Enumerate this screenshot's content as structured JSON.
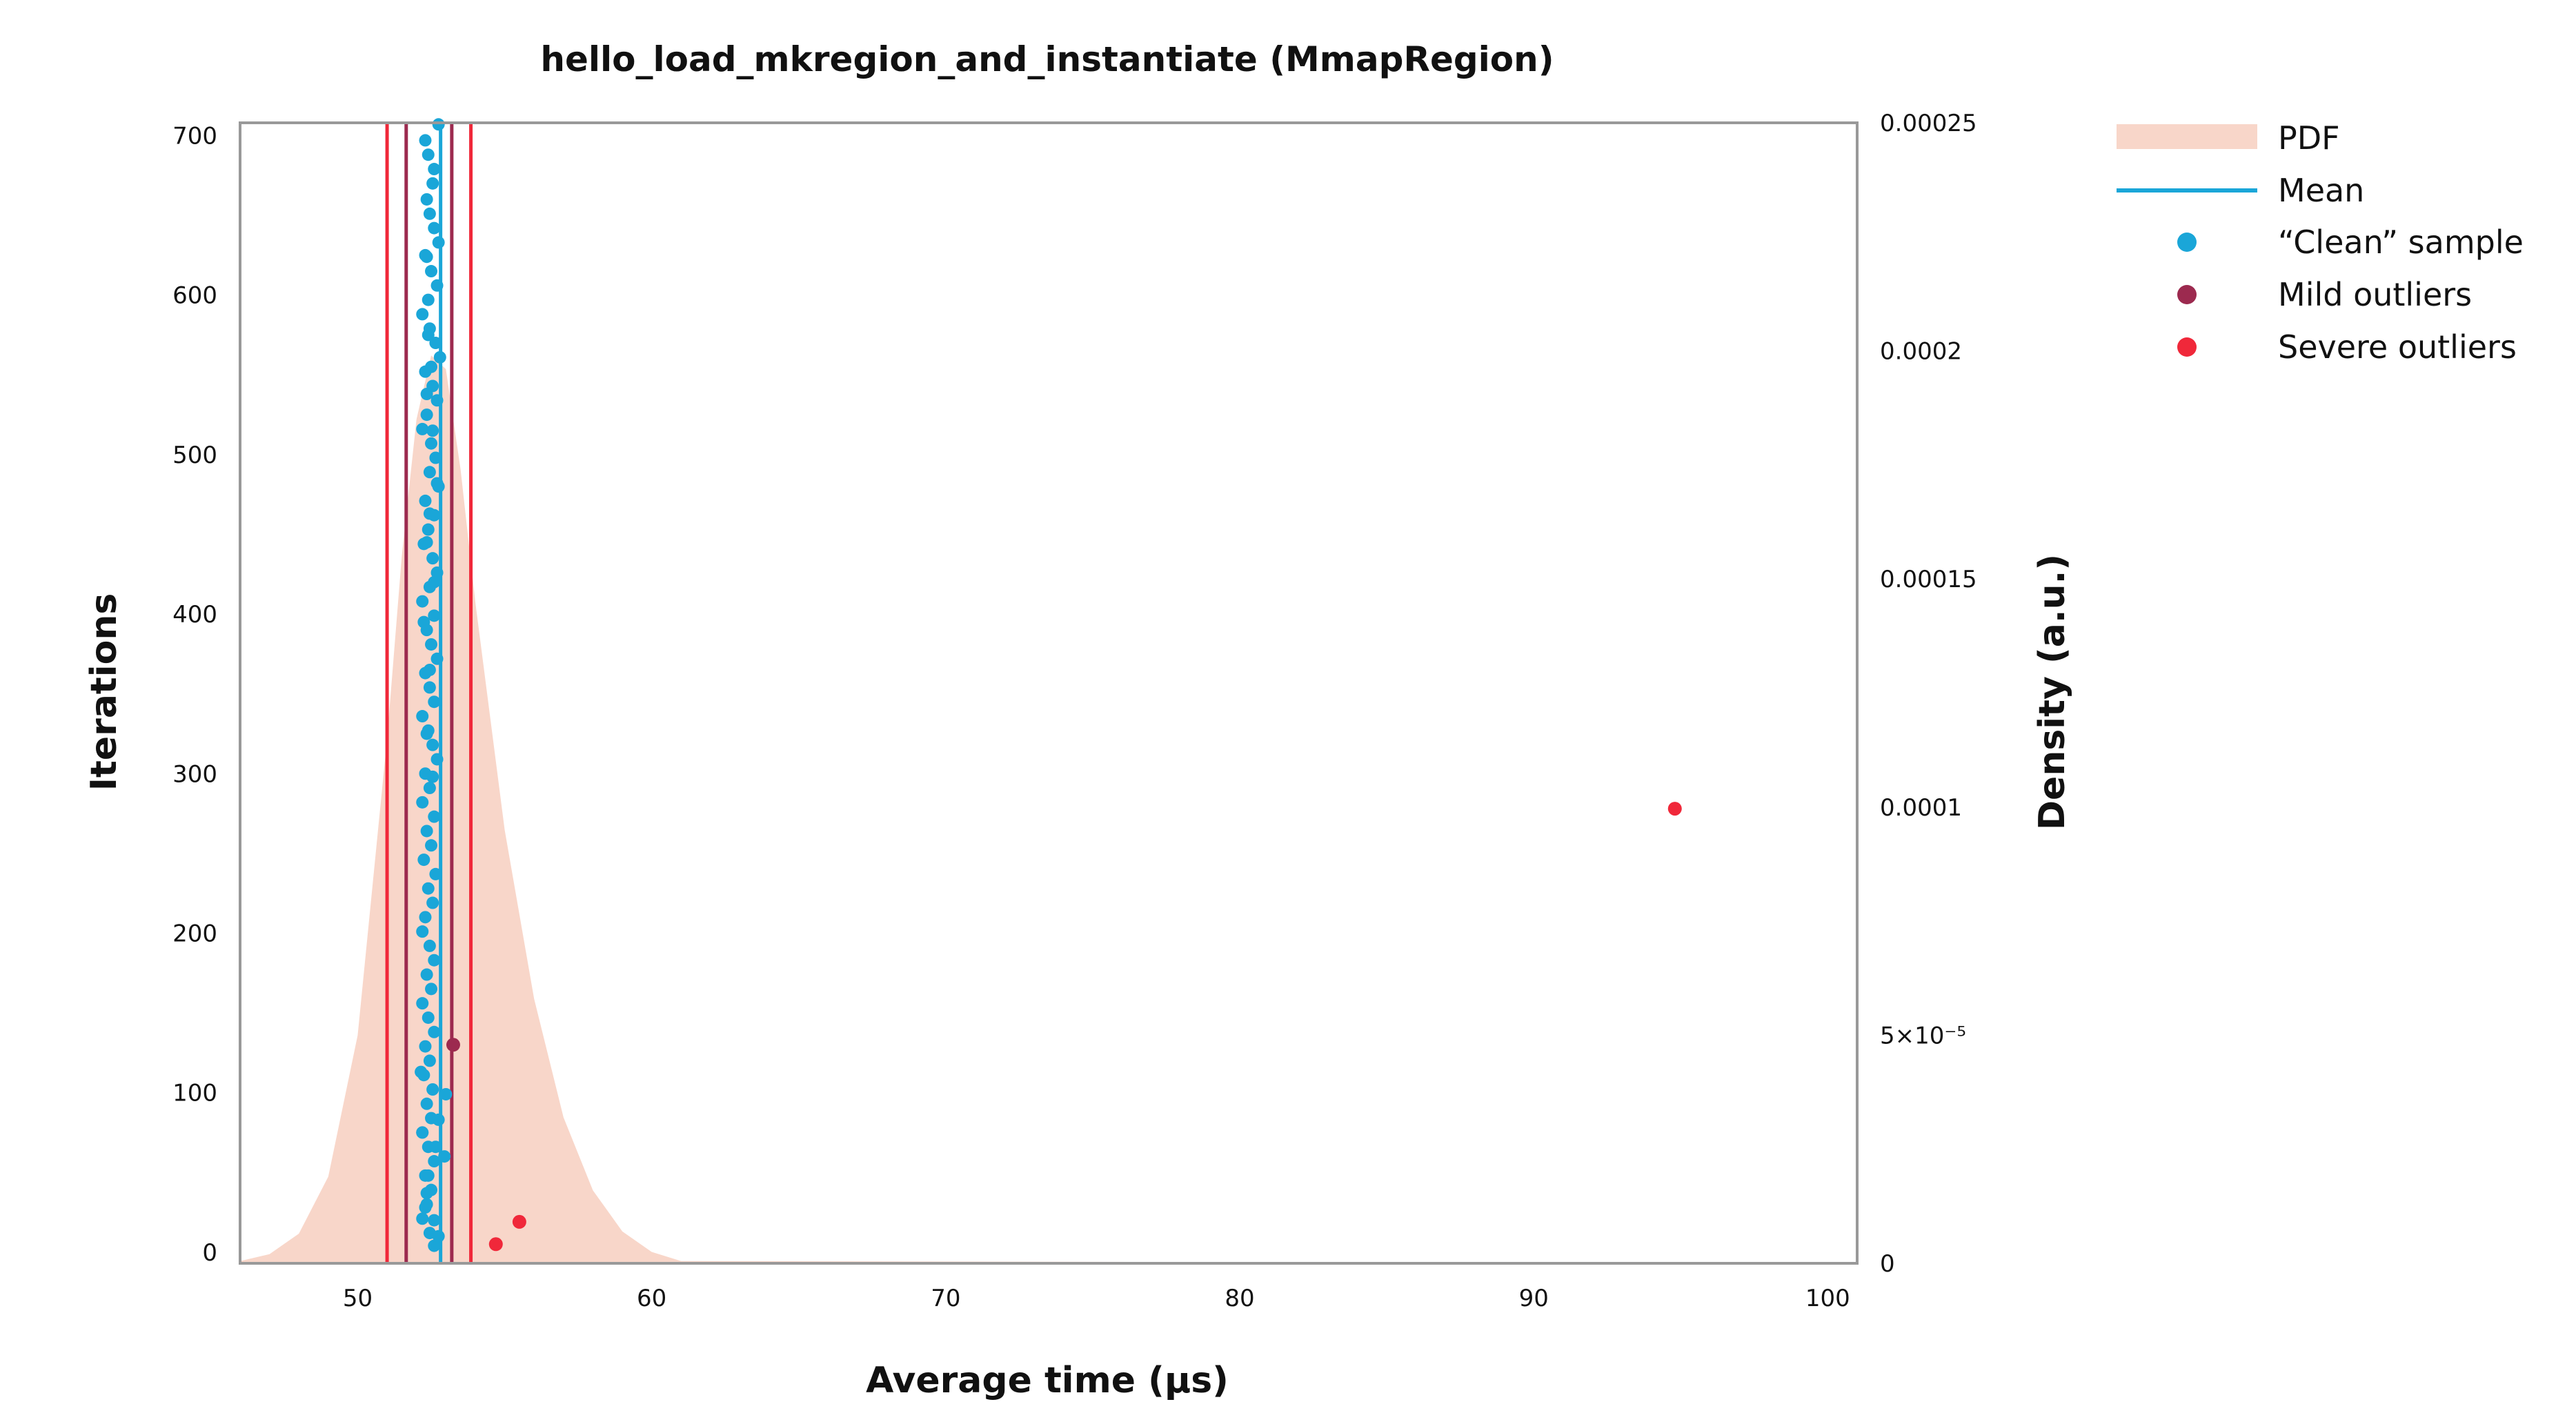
{
  "chart_data": {
    "type": "scatter",
    "title": "hello_load_mkregion_and_instantiate (MmapRegion)",
    "xlabel": "Average time (µs)",
    "ylabel": "Iterations",
    "y2label": "Density (a.u.)",
    "xlim": [
      46,
      101
    ],
    "ylim": [
      -7,
      708
    ],
    "y2lim": [
      0,
      0.00025
    ],
    "xticks": [
      "50",
      "60",
      "70",
      "80",
      "90",
      "100"
    ],
    "xtick_values": [
      50,
      60,
      70,
      80,
      90,
      100
    ],
    "yticks": [
      "0",
      "100",
      "200",
      "300",
      "400",
      "500",
      "600",
      "700"
    ],
    "ytick_values": [
      0,
      100,
      200,
      300,
      400,
      500,
      600,
      700
    ],
    "y2ticks": [
      "0",
      "5×10⁻⁵",
      "0.0001",
      "0.00015",
      "0.0002",
      "0.00025"
    ],
    "y2tick_values": [
      0,
      5e-05,
      0.0001,
      0.00015,
      0.0002,
      0.00025
    ],
    "grid": false,
    "legend_position": "outside-right-top",
    "legend": [
      {
        "label": "PDF",
        "kind": "area"
      },
      {
        "label": "Mean",
        "kind": "line"
      },
      {
        "label": "“Clean” sample",
        "kind": "dot"
      },
      {
        "label": "Mild outliers",
        "kind": "dot"
      },
      {
        "label": "Severe outliers",
        "kind": "dot"
      }
    ],
    "colors": {
      "pdf": "#f8d6c9",
      "mean": "#1aa6d8",
      "clean": "#1aa6d8",
      "mild": "#9c2a4f",
      "severe": "#f0283a"
    },
    "pdf": {
      "x": [
        46,
        47,
        48,
        49,
        50,
        51,
        51.5,
        52,
        52.5,
        53,
        53.5,
        54,
        55,
        56,
        57,
        58,
        59,
        60,
        61,
        101
      ],
      "density": [
        5e-07,
        2e-06,
        6.5e-06,
        1.9e-05,
        5e-05,
        0.000115,
        0.000155,
        0.000185,
        0.000199,
        0.000196,
        0.000174,
        0.000145,
        9.5e-05,
        5.8e-05,
        3.2e-05,
        1.6e-05,
        7e-06,
        2.5e-06,
        5e-07,
        0
      ]
    },
    "mean": 52.82,
    "mild_fences": [
      51.65,
      53.2
    ],
    "severe_fences": [
      51.0,
      53.85
    ],
    "clean_sample": {
      "x": [
        52.75,
        52.3,
        52.4,
        52.6,
        52.55,
        52.35,
        52.45,
        52.6,
        52.75,
        52.35,
        52.5,
        52.7,
        52.4,
        52.2,
        52.45,
        52.65,
        52.8,
        52.3,
        52.55,
        52.7,
        52.35,
        52.2,
        52.5,
        52.65,
        52.45,
        52.75,
        52.3,
        52.6,
        52.4,
        52.25,
        52.55,
        52.7,
        52.45,
        52.2,
        52.6,
        52.35,
        52.5,
        52.7,
        52.3,
        52.45,
        52.6,
        52.2,
        52.4,
        52.55,
        52.7,
        52.3,
        52.45,
        52.2,
        52.6,
        52.35,
        52.5,
        52.25,
        52.65,
        52.4,
        52.55,
        52.3,
        52.2,
        52.45,
        52.6,
        52.35,
        52.5,
        52.2,
        52.4,
        52.6,
        52.3,
        52.45,
        52.25,
        52.55,
        52.35,
        52.5,
        52.2,
        52.4,
        52.6,
        52.3,
        52.5,
        52.35,
        52.2,
        52.45,
        52.6,
        52.3,
        52.4,
        52.5,
        52.35,
        52.55,
        52.7,
        52.45,
        52.35,
        52.6,
        52.25,
        52.45,
        52.35,
        52.55,
        53.0,
        52.15,
        52.75,
        52.65,
        52.2,
        52.95,
        52.4,
        52.35,
        52.3,
        52.6,
        52.75
      ],
      "y": [
        707,
        697,
        688,
        679,
        670,
        660,
        651,
        642,
        633,
        624,
        615,
        606,
        597,
        588,
        579,
        570,
        561,
        552,
        543,
        534,
        525,
        516,
        507,
        498,
        489,
        480,
        471,
        462,
        453,
        444,
        435,
        426,
        417,
        408,
        399,
        390,
        381,
        372,
        363,
        354,
        345,
        336,
        327,
        318,
        309,
        300,
        291,
        282,
        273,
        264,
        255,
        246,
        237,
        228,
        219,
        210,
        201,
        192,
        183,
        174,
        165,
        156,
        147,
        138,
        129,
        120,
        111,
        102,
        93,
        84,
        75,
        66,
        57,
        48,
        39,
        30,
        21,
        12,
        4,
        625,
        575,
        555,
        538,
        515,
        482,
        463,
        445,
        420,
        395,
        365,
        325,
        298,
        99,
        113,
        83,
        66,
        75,
        60,
        48,
        37,
        28,
        20,
        10
      ]
    },
    "mild_outliers": {
      "x": [
        53.25
      ],
      "y": [
        130
      ]
    },
    "severe_outliers": {
      "x": [
        94.8,
        55.5,
        54.7
      ],
      "y": [
        278,
        19,
        5
      ]
    }
  }
}
